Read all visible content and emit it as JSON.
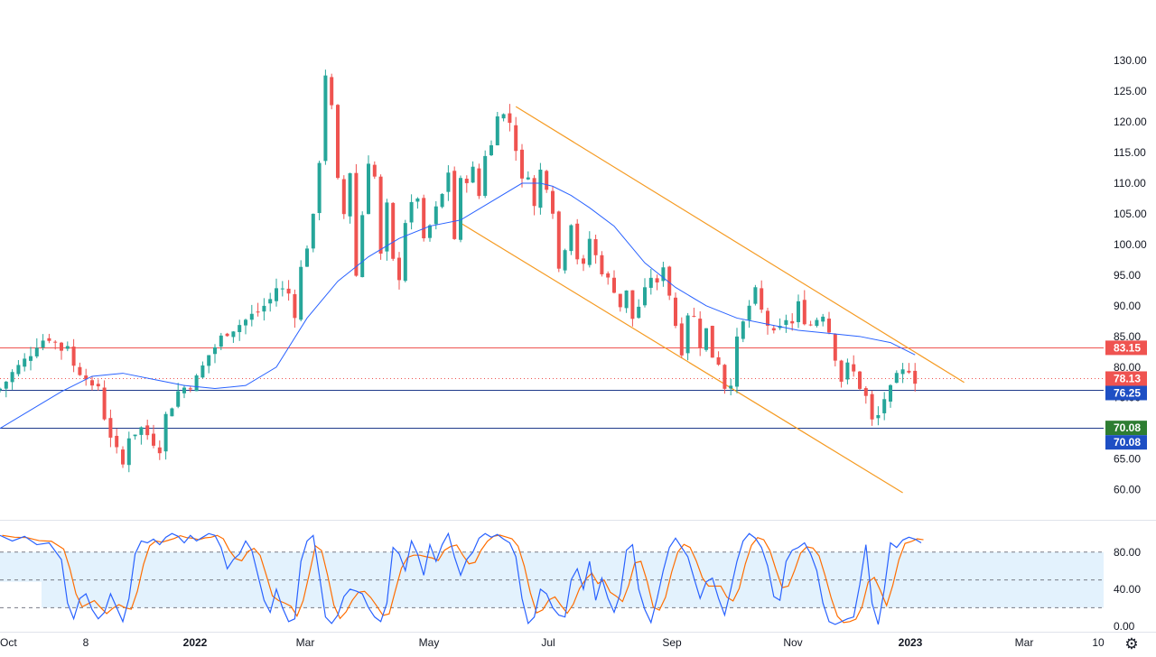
{
  "chart_data": [
    {
      "type": "candlestick",
      "ylim": [
        57,
        134
      ],
      "y_ticks": [
        "130.00",
        "125.00",
        "120.00",
        "115.00",
        "110.00",
        "105.00",
        "100.00",
        "95.00",
        "90.00",
        "85.00",
        "80.00",
        "75.00",
        "70.00",
        "65.00",
        "60.00"
      ],
      "x_ticks": [
        "Oct",
        "8",
        "2022",
        "Mar",
        "May",
        "Jul",
        "Sep",
        "Nov",
        "2023",
        "Mar",
        "10"
      ],
      "colors": {
        "up": "#26a69a",
        "down": "#ef5350",
        "ma": "#2962ff",
        "channel": "#f59b23"
      },
      "close_path": [
        [
          0,
          76.5
        ],
        [
          2,
          79
        ],
        [
          4,
          81
        ],
        [
          6,
          84
        ],
        [
          8,
          85
        ],
        [
          10,
          83
        ],
        [
          11,
          84
        ],
        [
          12,
          80
        ],
        [
          14,
          79
        ],
        [
          15,
          76
        ],
        [
          16,
          77
        ],
        [
          17,
          72
        ],
        [
          19,
          66
        ],
        [
          20,
          64
        ],
        [
          21,
          69
        ],
        [
          23,
          70
        ],
        [
          25,
          68
        ],
        [
          26,
          67
        ],
        [
          27,
          72
        ],
        [
          29,
          76
        ],
        [
          32,
          78
        ],
        [
          34,
          82
        ],
        [
          37,
          86
        ],
        [
          39,
          87
        ],
        [
          42,
          89
        ],
        [
          44,
          91
        ],
        [
          45,
          93
        ],
        [
          47,
          92
        ],
        [
          48,
          89
        ],
        [
          49,
          96
        ],
        [
          51,
          104
        ],
        [
          52,
          114
        ],
        [
          53,
          128
        ],
        [
          54,
          122
        ],
        [
          55,
          110
        ],
        [
          56,
          105
        ],
        [
          57,
          112
        ],
        [
          58,
          95
        ],
        [
          59,
          105
        ],
        [
          60,
          114
        ],
        [
          61,
          111
        ],
        [
          62,
          98
        ],
        [
          63,
          106
        ],
        [
          64,
          97
        ],
        [
          65,
          95
        ],
        [
          66,
          104
        ],
        [
          68,
          108
        ],
        [
          69,
          100
        ],
        [
          70,
          103
        ],
        [
          72,
          108
        ],
        [
          73,
          112
        ],
        [
          74,
          101
        ],
        [
          75,
          110
        ],
        [
          77,
          112
        ],
        [
          78,
          108
        ],
        [
          79,
          115
        ],
        [
          80,
          116
        ],
        [
          81,
          122
        ],
        [
          82,
          121
        ],
        [
          83,
          120
        ],
        [
          84,
          116
        ],
        [
          85,
          110
        ],
        [
          86,
          112
        ],
        [
          87,
          106
        ],
        [
          88,
          112
        ],
        [
          89,
          110
        ],
        [
          90,
          106
        ],
        [
          91,
          96
        ],
        [
          92,
          100
        ],
        [
          93,
          104
        ],
        [
          94,
          98
        ],
        [
          95,
          96
        ],
        [
          96,
          101
        ],
        [
          97,
          98
        ],
        [
          98,
          96
        ],
        [
          99,
          94
        ],
        [
          100,
          93
        ],
        [
          101,
          90
        ],
        [
          102,
          92
        ],
        [
          103,
          88
        ],
        [
          104,
          90
        ],
        [
          105,
          92
        ],
        [
          106,
          95
        ],
        [
          107,
          93
        ],
        [
          108,
          97
        ],
        [
          109,
          92
        ],
        [
          110,
          87
        ],
        [
          111,
          83
        ],
        [
          112,
          89
        ],
        [
          113,
          88
        ],
        [
          114,
          84
        ],
        [
          115,
          86
        ],
        [
          116,
          82
        ],
        [
          117,
          81
        ],
        [
          118,
          77
        ],
        [
          119,
          78
        ],
        [
          120,
          84
        ],
        [
          121,
          87
        ],
        [
          122,
          90
        ],
        [
          123,
          92
        ],
        [
          124,
          89
        ],
        [
          125,
          87
        ],
        [
          126,
          85
        ],
        [
          127,
          86
        ],
        [
          128,
          88
        ],
        [
          129,
          87
        ],
        [
          130,
          90
        ],
        [
          131,
          88
        ],
        [
          132,
          87
        ],
        [
          133,
          88
        ],
        [
          134,
          89
        ],
        [
          135,
          86
        ],
        [
          136,
          82
        ],
        [
          137,
          78
        ],
        [
          138,
          80
        ],
        [
          139,
          79
        ],
        [
          140,
          77
        ],
        [
          141,
          75
        ],
        [
          142,
          71
        ],
        [
          143,
          72
        ],
        [
          144,
          75
        ],
        [
          145,
          76
        ],
        [
          146,
          78
        ],
        [
          147,
          79
        ],
        [
          148,
          80
        ],
        [
          149,
          78.13
        ]
      ],
      "ma_path": [
        [
          0,
          70
        ],
        [
          5,
          73
        ],
        [
          10,
          76
        ],
        [
          15,
          78.5
        ],
        [
          20,
          79
        ],
        [
          25,
          78
        ],
        [
          30,
          77
        ],
        [
          35,
          76.5
        ],
        [
          40,
          77
        ],
        [
          45,
          80
        ],
        [
          50,
          88
        ],
        [
          55,
          94
        ],
        [
          60,
          98
        ],
        [
          65,
          101
        ],
        [
          70,
          103
        ],
        [
          75,
          104
        ],
        [
          80,
          107
        ],
        [
          85,
          110
        ],
        [
          88,
          110
        ],
        [
          90,
          109.5
        ],
        [
          93,
          108
        ],
        [
          96,
          106
        ],
        [
          100,
          103
        ],
        [
          105,
          97
        ],
        [
          110,
          93
        ],
        [
          115,
          90
        ],
        [
          120,
          88
        ],
        [
          125,
          87
        ],
        [
          130,
          86
        ],
        [
          135,
          85.5
        ],
        [
          140,
          85
        ],
        [
          145,
          84
        ],
        [
          149,
          82
        ]
      ],
      "channel_upper": [
        [
          84,
          122.5
        ],
        [
          157,
          77.5
        ]
      ],
      "channel_lower": [
        [
          75,
          103.5
        ],
        [
          147,
          59.5
        ]
      ],
      "horizontal_lines": [
        {
          "value": 83.15,
          "color": "#ef5350",
          "style": "solid"
        },
        {
          "value": 78.13,
          "color": "#ef5350",
          "style": "dotted"
        },
        {
          "value": 76.25,
          "color": "#1e3a8a",
          "style": "solid"
        },
        {
          "value": 70.08,
          "color": "#1e3a8a",
          "style": "solid"
        }
      ],
      "price_labels": [
        {
          "text": "83.15",
          "value": 83.15,
          "color": "#ef5350"
        },
        {
          "text": "78.13",
          "value": 78.13,
          "color": "#ef5350"
        },
        {
          "text": "76.25",
          "value": 76.25,
          "color": "#1e4fc4"
        },
        {
          "text": "70.08",
          "value": 70.08,
          "color": "#2e7d32"
        },
        {
          "text": "70.08",
          "value": 70.08,
          "color": "#1e4fc4"
        }
      ]
    },
    {
      "type": "line",
      "ylim": [
        -3,
        108
      ],
      "y_ticks": [
        "80.00",
        "40.00",
        "0.00"
      ],
      "levels": [
        80,
        50,
        20
      ],
      "colors": {
        "k": "#2962ff",
        "d": "#ff6d00",
        "band": "#e3f2fd"
      },
      "k_path": [
        [
          0,
          98
        ],
        [
          2,
          92
        ],
        [
          4,
          97
        ],
        [
          6,
          88
        ],
        [
          8,
          90
        ],
        [
          10,
          72
        ],
        [
          11,
          25
        ],
        [
          12,
          8
        ],
        [
          13,
          30
        ],
        [
          14,
          35
        ],
        [
          15,
          18
        ],
        [
          16,
          8
        ],
        [
          17,
          15
        ],
        [
          18,
          35
        ],
        [
          19,
          20
        ],
        [
          20,
          5
        ],
        [
          21,
          30
        ],
        [
          22,
          78
        ],
        [
          23,
          92
        ],
        [
          24,
          90
        ],
        [
          25,
          94
        ],
        [
          26,
          88
        ],
        [
          27,
          96
        ],
        [
          28,
          100
        ],
        [
          29,
          97
        ],
        [
          30,
          90
        ],
        [
          31,
          98
        ],
        [
          32,
          92
        ],
        [
          33,
          96
        ],
        [
          34,
          100
        ],
        [
          35,
          98
        ],
        [
          36,
          85
        ],
        [
          37,
          62
        ],
        [
          38,
          72
        ],
        [
          39,
          78
        ],
        [
          40,
          92
        ],
        [
          41,
          82
        ],
        [
          42,
          55
        ],
        [
          43,
          28
        ],
        [
          44,
          15
        ],
        [
          45,
          40
        ],
        [
          46,
          20
        ],
        [
          47,
          5
        ],
        [
          48,
          8
        ],
        [
          49,
          70
        ],
        [
          50,
          92
        ],
        [
          51,
          98
        ],
        [
          52,
          55
        ],
        [
          53,
          10
        ],
        [
          54,
          3
        ],
        [
          55,
          12
        ],
        [
          56,
          32
        ],
        [
          57,
          40
        ],
        [
          58,
          38
        ],
        [
          59,
          35
        ],
        [
          60,
          20
        ],
        [
          61,
          10
        ],
        [
          62,
          5
        ],
        [
          63,
          25
        ],
        [
          64,
          85
        ],
        [
          65,
          78
        ],
        [
          66,
          60
        ],
        [
          67,
          92
        ],
        [
          68,
          78
        ],
        [
          69,
          55
        ],
        [
          70,
          88
        ],
        [
          71,
          70
        ],
        [
          72,
          88
        ],
        [
          73,
          100
        ],
        [
          74,
          75
        ],
        [
          75,
          55
        ],
        [
          76,
          72
        ],
        [
          77,
          80
        ],
        [
          78,
          95
        ],
        [
          79,
          100
        ],
        [
          80,
          96
        ],
        [
          81,
          99
        ],
        [
          82,
          94
        ],
        [
          83,
          90
        ],
        [
          84,
          75
        ],
        [
          85,
          30
        ],
        [
          86,
          3
        ],
        [
          87,
          10
        ],
        [
          88,
          40
        ],
        [
          89,
          35
        ],
        [
          90,
          20
        ],
        [
          91,
          12
        ],
        [
          92,
          10
        ],
        [
          93,
          50
        ],
        [
          94,
          62
        ],
        [
          95,
          40
        ],
        [
          96,
          70
        ],
        [
          97,
          28
        ],
        [
          98,
          52
        ],
        [
          99,
          30
        ],
        [
          100,
          15
        ],
        [
          101,
          35
        ],
        [
          102,
          82
        ],
        [
          103,
          88
        ],
        [
          104,
          40
        ],
        [
          105,
          18
        ],
        [
          106,
          4
        ],
        [
          107,
          30
        ],
        [
          108,
          60
        ],
        [
          109,
          85
        ],
        [
          110,
          95
        ],
        [
          111,
          85
        ],
        [
          112,
          75
        ],
        [
          113,
          52
        ],
        [
          114,
          30
        ],
        [
          115,
          48
        ],
        [
          116,
          52
        ],
        [
          117,
          30
        ],
        [
          118,
          12
        ],
        [
          119,
          40
        ],
        [
          120,
          70
        ],
        [
          121,
          92
        ],
        [
          122,
          100
        ],
        [
          123,
          95
        ],
        [
          124,
          85
        ],
        [
          125,
          65
        ],
        [
          126,
          32
        ],
        [
          127,
          28
        ],
        [
          128,
          70
        ],
        [
          129,
          82
        ],
        [
          130,
          85
        ],
        [
          131,
          90
        ],
        [
          132,
          78
        ],
        [
          133,
          60
        ],
        [
          134,
          25
        ],
        [
          135,
          5
        ],
        [
          136,
          2
        ],
        [
          137,
          5
        ],
        [
          138,
          8
        ],
        [
          139,
          10
        ],
        [
          140,
          45
        ],
        [
          141,
          88
        ],
        [
          142,
          25
        ],
        [
          143,
          2
        ],
        [
          144,
          40
        ],
        [
          145,
          90
        ],
        [
          146,
          85
        ],
        [
          147,
          93
        ],
        [
          148,
          96
        ],
        [
          149,
          94
        ],
        [
          150,
          90
        ]
      ]
    }
  ]
}
